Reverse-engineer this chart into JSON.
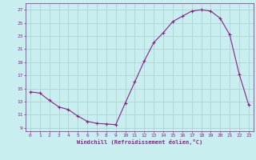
{
  "x": [
    0,
    1,
    2,
    3,
    4,
    5,
    6,
    7,
    8,
    9,
    10,
    11,
    12,
    13,
    14,
    15,
    16,
    17,
    18,
    19,
    20,
    21,
    22,
    23
  ],
  "y": [
    14.5,
    14.3,
    13.2,
    12.2,
    11.8,
    10.8,
    10.0,
    9.7,
    9.6,
    9.5,
    12.8,
    16.0,
    19.2,
    22.0,
    23.5,
    25.2,
    26.0,
    26.8,
    27.0,
    26.8,
    25.7,
    23.2,
    17.2,
    12.5
  ],
  "xlabel": "Windchill (Refroidissement éolien,°C)",
  "ylabel": "",
  "xlim": [
    -0.5,
    23.5
  ],
  "ylim": [
    8.5,
    28
  ],
  "yticks": [
    9,
    11,
    13,
    15,
    17,
    19,
    21,
    23,
    25,
    27
  ],
  "xticks": [
    0,
    1,
    2,
    3,
    4,
    5,
    6,
    7,
    8,
    9,
    10,
    11,
    12,
    13,
    14,
    15,
    16,
    17,
    18,
    19,
    20,
    21,
    22,
    23
  ],
  "line_color": "#882288",
  "marker": "+",
  "bg_color": "#c8eef0",
  "grid_color": "#aacccc",
  "label_color": "#882288",
  "tick_color": "#882288",
  "spine_color": "#882288"
}
